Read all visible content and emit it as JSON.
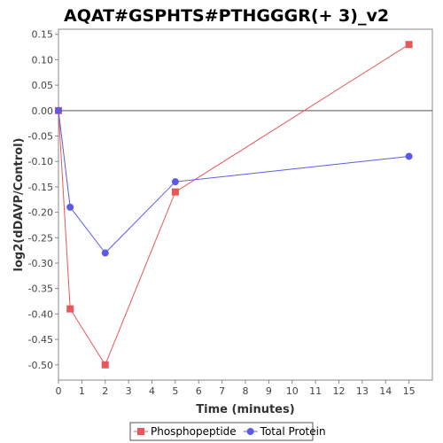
{
  "chart_data": {
    "type": "line",
    "title": "AQAT#GSPHTS#PTHGGGR(+ 3)_v2",
    "xlabel": "Time (minutes)",
    "ylabel": "log2(dDAVP/Control)",
    "xlim": [
      0,
      16
    ],
    "ylim": [
      -0.53,
      0.16
    ],
    "x_ticks": [
      0,
      1,
      2,
      3,
      4,
      5,
      6,
      7,
      8,
      9,
      10,
      11,
      12,
      13,
      14,
      15
    ],
    "y_ticks": [
      0.15,
      0.1,
      0.05,
      0.0,
      -0.05,
      -0.1,
      -0.15,
      -0.2,
      -0.25,
      -0.3,
      -0.35,
      -0.4,
      -0.45,
      -0.5
    ],
    "y_tick_labels": [
      "0.15",
      "0.10",
      "0.05",
      "0.00",
      "-0.05",
      "-0.10",
      "-0.15",
      "-0.20",
      "-0.25",
      "-0.30",
      "-0.35",
      "-0.40",
      "-0.45",
      "-0.50"
    ],
    "zero_line": 0,
    "grid": false,
    "legend_position": "bottom",
    "series": [
      {
        "name": "Phosphopeptide",
        "color": "#e8585a",
        "marker": "square",
        "x": [
          0,
          0.5,
          2,
          5,
          15
        ],
        "y": [
          0.0,
          -0.39,
          -0.5,
          -0.16,
          0.13
        ]
      },
      {
        "name": "Total Protein",
        "color": "#5b5be8",
        "marker": "circle",
        "x": [
          0,
          0.5,
          2,
          5,
          15
        ],
        "y": [
          0.0,
          -0.19,
          -0.28,
          -0.14,
          -0.09
        ]
      }
    ]
  }
}
